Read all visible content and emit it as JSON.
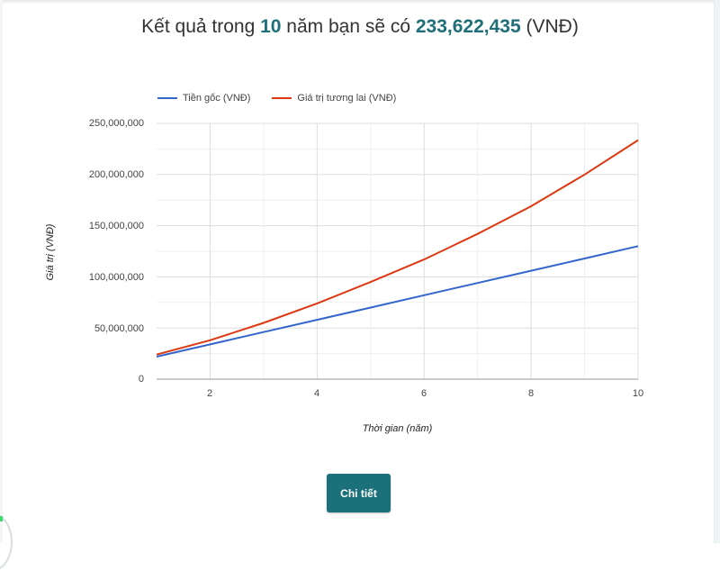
{
  "title": {
    "prefix": "Kết quả trong ",
    "years": "10",
    "middle": " năm bạn sẽ có ",
    "amount": "233,622,435",
    "suffix": " (VNĐ)"
  },
  "legend": [
    {
      "label": "Tiền gốc (VNĐ)",
      "color": "#3366cc"
    },
    {
      "label": "Giá trị tương lai (VNĐ)",
      "color": "#dc3912"
    }
  ],
  "axes": {
    "ylabel": "Giá trị (VNĐ)",
    "xlabel": "Thời gian (năm)",
    "yticks": [
      "250,000,000",
      "200,000,000",
      "150,000,000",
      "100,000,000",
      "50,000,000",
      "0"
    ],
    "xticks": [
      "2",
      "4",
      "6",
      "8",
      "10"
    ]
  },
  "button": {
    "label": "Chi tiết"
  },
  "colors": {
    "accent": "#1b7079",
    "principal": "#3366cc",
    "future": "#dc3912"
  },
  "chart_data": {
    "type": "line",
    "title": "Kết quả trong 10 năm bạn sẽ có 233,622,435 (VNĐ)",
    "xlabel": "Thời gian (năm)",
    "ylabel": "Giá trị (VNĐ)",
    "x": [
      1,
      2,
      3,
      4,
      5,
      6,
      7,
      8,
      9,
      10
    ],
    "series": [
      {
        "name": "Tiền gốc (VNĐ)",
        "color": "#3366cc",
        "values": [
          22000000,
          34000000,
          46000000,
          58000000,
          70000000,
          82000000,
          94000000,
          106000000,
          118000000,
          130000000
        ]
      },
      {
        "name": "Giá trị tương lai (VNĐ)",
        "color": "#dc3912",
        "values": [
          24000000,
          38000000,
          55000000,
          74000000,
          95000000,
          117000000,
          142000000,
          169000000,
          200000000,
          233622435
        ]
      }
    ],
    "xlim": [
      1,
      10
    ],
    "ylim": [
      0,
      250000000
    ],
    "grid": true,
    "legend_position": "top"
  }
}
